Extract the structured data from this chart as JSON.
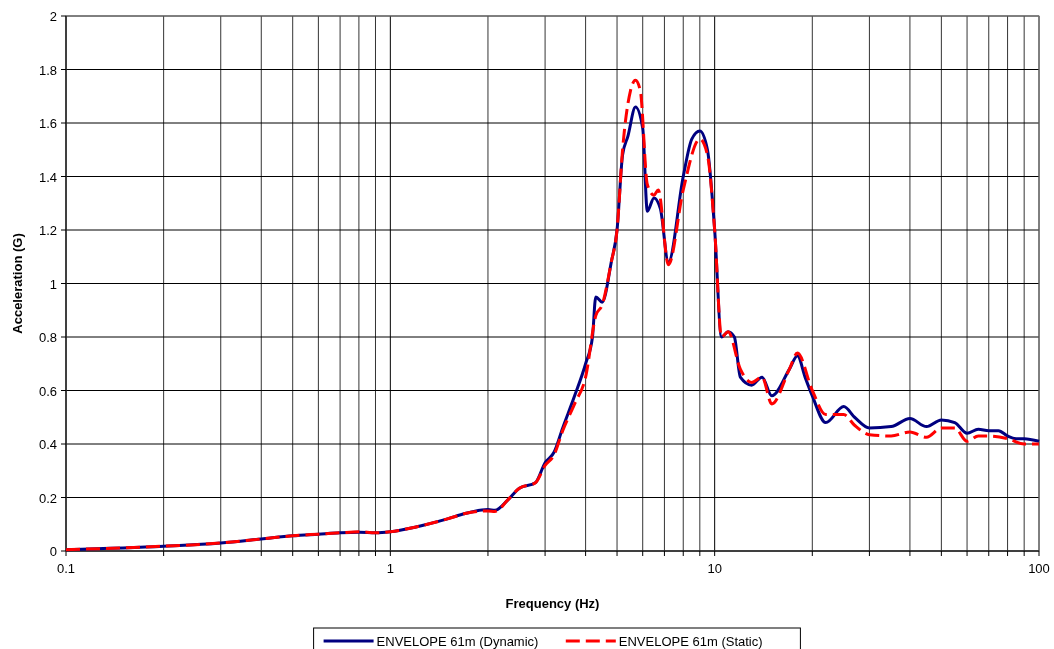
{
  "chart_data": {
    "type": "line",
    "xlabel": "Frequency (Hz)",
    "ylabel": "Acceleration (G)",
    "log": "x",
    "xlim": [
      0.1,
      100
    ],
    "ylim": [
      0,
      2
    ],
    "xticks": [
      0.1,
      {
        "value": 0.2,
        "label": null
      },
      {
        "value": 0.3,
        "label": null
      },
      {
        "value": 0.4,
        "label": null
      },
      {
        "value": 0.5,
        "label": null
      },
      {
        "value": 0.6,
        "label": null
      },
      {
        "value": 0.7,
        "label": null
      },
      {
        "value": 0.8,
        "label": null
      },
      {
        "value": 0.9,
        "label": null
      },
      1,
      {
        "value": 2,
        "label": null
      },
      {
        "value": 3,
        "label": null
      },
      {
        "value": 4,
        "label": null
      },
      {
        "value": 5,
        "label": null
      },
      {
        "value": 6,
        "label": null
      },
      {
        "value": 7,
        "label": null
      },
      {
        "value": 8,
        "label": null
      },
      {
        "value": 9,
        "label": null
      },
      10,
      {
        "value": 20,
        "label": null
      },
      {
        "value": 30,
        "label": null
      },
      {
        "value": 40,
        "label": null
      },
      {
        "value": 50,
        "label": null
      },
      {
        "value": 60,
        "label": null
      },
      {
        "value": 70,
        "label": null
      },
      {
        "value": 80,
        "label": null
      },
      {
        "value": 90,
        "label": null
      },
      100
    ],
    "yticks": [
      0,
      0.2,
      0.4,
      0.6,
      0.8,
      1,
      1.2,
      1.4,
      1.6,
      1.8,
      2
    ],
    "grid": true,
    "legend": "bottom",
    "marker": "none",
    "series": [
      {
        "name": "ENVELOPE 61m (Dynamic)",
        "color": "#000080",
        "line_style": "solid",
        "x": [
          0.1,
          0.2,
          0.3,
          0.4,
          0.5,
          0.6,
          0.7,
          0.8,
          0.9,
          1,
          1.2,
          1.5,
          1.7,
          2,
          2.1,
          2.3,
          2.5,
          2.8,
          3,
          3.2,
          3.4,
          3.7,
          4,
          4.2,
          4.3,
          4.5,
          4.8,
          5,
          5.2,
          5.4,
          5.7,
          6,
          6.2,
          6.5,
          6.8,
          7.2,
          8,
          8.5,
          9,
          9.5,
          10,
          10.5,
          11,
          11.5,
          12,
          13,
          14,
          15,
          17,
          18,
          19,
          20,
          22,
          25,
          27,
          30,
          35,
          40,
          45,
          50,
          55,
          60,
          65,
          70,
          75,
          80,
          85,
          90,
          100
        ],
        "values": [
          0.005,
          0.018,
          0.03,
          0.045,
          0.057,
          0.063,
          0.068,
          0.07,
          0.068,
          0.072,
          0.09,
          0.12,
          0.14,
          0.155,
          0.152,
          0.19,
          0.235,
          0.255,
          0.33,
          0.37,
          0.46,
          0.58,
          0.7,
          0.8,
          0.95,
          0.93,
          1.08,
          1.2,
          1.48,
          1.55,
          1.66,
          1.58,
          1.27,
          1.32,
          1.28,
          1.08,
          1.4,
          1.54,
          1.57,
          1.5,
          1.2,
          0.8,
          0.82,
          0.8,
          0.65,
          0.62,
          0.65,
          0.58,
          0.68,
          0.73,
          0.65,
          0.58,
          0.48,
          0.54,
          0.5,
          0.46,
          0.465,
          0.495,
          0.465,
          0.49,
          0.48,
          0.44,
          0.455,
          0.45,
          0.45,
          0.43,
          0.42,
          0.42,
          0.41
        ]
      },
      {
        "name": "ENVELOPE 61m (Static)",
        "color": "#ff0000",
        "line_style": "dashed",
        "x": [
          0.1,
          0.2,
          0.3,
          0.4,
          0.5,
          0.6,
          0.7,
          0.8,
          0.9,
          1,
          1.2,
          1.5,
          1.7,
          2,
          2.1,
          2.3,
          2.5,
          2.8,
          3,
          3.2,
          3.4,
          3.7,
          4,
          4.3,
          4.5,
          4.8,
          5,
          5.2,
          5.5,
          5.7,
          5.9,
          6.2,
          6.5,
          6.7,
          7.2,
          8,
          9,
          9.5,
          10,
          10.5,
          11,
          12,
          13,
          14,
          15,
          17,
          18,
          20,
          22,
          25,
          27,
          30,
          35,
          40,
          45,
          50,
          55,
          60,
          65,
          70,
          80,
          90,
          100
        ],
        "values": [
          0.005,
          0.018,
          0.03,
          0.045,
          0.057,
          0.063,
          0.068,
          0.072,
          0.068,
          0.072,
          0.09,
          0.12,
          0.14,
          0.15,
          0.148,
          0.19,
          0.235,
          0.255,
          0.32,
          0.36,
          0.45,
          0.55,
          0.65,
          0.88,
          0.92,
          1.08,
          1.2,
          1.5,
          1.72,
          1.76,
          1.72,
          1.37,
          1.33,
          1.35,
          1.07,
          1.35,
          1.54,
          1.48,
          1.2,
          0.8,
          0.82,
          0.68,
          0.63,
          0.65,
          0.55,
          0.68,
          0.74,
          0.6,
          0.51,
          0.51,
          0.47,
          0.435,
          0.43,
          0.445,
          0.425,
          0.46,
          0.46,
          0.41,
          0.43,
          0.43,
          0.42,
          0.4,
          0.4
        ]
      }
    ]
  }
}
